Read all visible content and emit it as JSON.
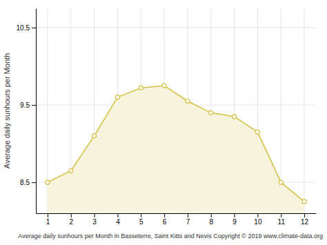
{
  "chart_data": {
    "type": "area",
    "xlabel": "Average daily sunhours per Month in Basseterre, Saint Kitts and Nevis Copyright © 2019 www.climate-data.org",
    "ylabel": "Average daily sunhours per Month",
    "x": [
      1,
      2,
      3,
      4,
      5,
      6,
      7,
      8,
      9,
      10,
      11,
      12
    ],
    "values": [
      8.5,
      8.65,
      9.1,
      9.6,
      9.72,
      9.75,
      9.55,
      9.4,
      9.35,
      9.15,
      8.5,
      8.25
    ],
    "color": "#D4C040",
    "marker": "circle",
    "xlim": [
      0.5,
      12.5
    ],
    "xticks": [
      1,
      2,
      3,
      4,
      5,
      6,
      7,
      8,
      9,
      10,
      11,
      12
    ],
    "ylim": [
      8.1,
      10.75
    ],
    "yticks": [
      8.5,
      9.5,
      10.5
    ],
    "grid": true
  }
}
